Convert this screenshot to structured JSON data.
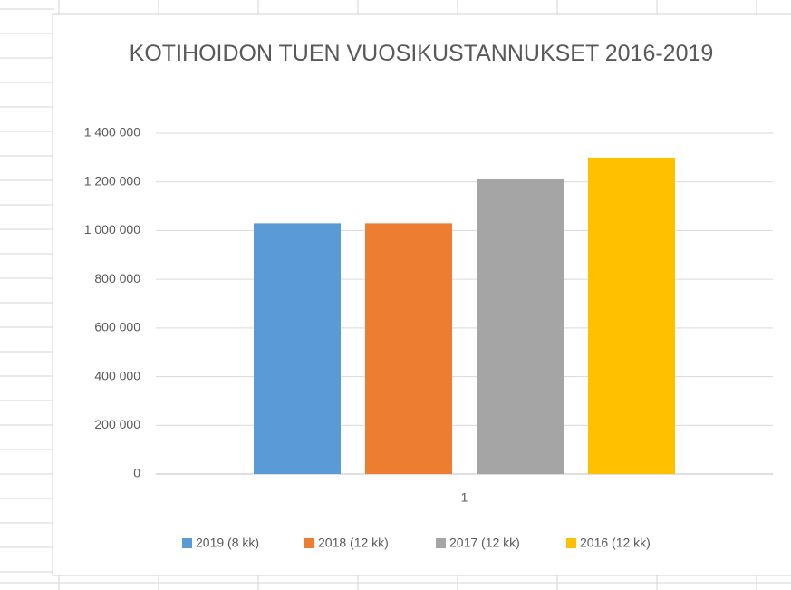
{
  "chart_data": {
    "type": "bar",
    "title": "KOTIHOIDON TUEN VUOSIKUSTANNUKSET 2016-2019",
    "categories": [
      "1"
    ],
    "series": [
      {
        "name": "2019 (8 kk)",
        "color": "#5b9bd5",
        "values": [
          1030000
        ]
      },
      {
        "name": "2018 (12 kk)",
        "color": "#ed7d31",
        "values": [
          1030000
        ]
      },
      {
        "name": "2017 (12 kk)",
        "color": "#a5a5a5",
        "values": [
          1214000
        ]
      },
      {
        "name": "2016 (12 kk)",
        "color": "#ffc000",
        "values": [
          1300000
        ]
      }
    ],
    "ylim": [
      0,
      1400000
    ],
    "yticks": [
      0,
      {
        "value": 200000,
        "label": "200 000"
      },
      {
        "value": 400000,
        "label": "400 000"
      },
      {
        "value": 600000,
        "label": "600 000"
      },
      {
        "value": 800000,
        "label": "800 000"
      },
      {
        "value": 1000000,
        "label": "1 000 000"
      },
      {
        "value": 1200000,
        "label": "1 200 000"
      },
      {
        "value": 1400000,
        "label": "1 400 000"
      }
    ],
    "grid": true,
    "legend": "bottom"
  }
}
